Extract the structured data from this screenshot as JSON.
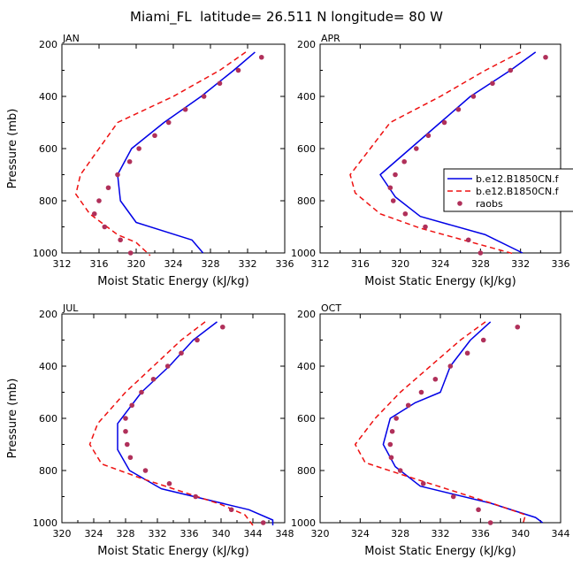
{
  "figure": {
    "title": "Miami_FL  latitude= 26.511 N longitude= 80 W"
  },
  "colors": {
    "model_a": "#0000e6",
    "model_b": "#ee1111",
    "raobs": "#b0305a"
  },
  "legend": {
    "entries": [
      "b.e12.B1850CN.f",
      "b.e12.B1850CN.f",
      "raobs"
    ]
  },
  "chart_data": [
    {
      "type": "line",
      "panel": "JAN",
      "xlabel": "Moist Static Energy (kJ/kg)",
      "ylabel": "Pressure (mb)",
      "xlim": [
        312,
        336
      ],
      "xticks": [
        312,
        316,
        320,
        324,
        328,
        332,
        336
      ],
      "ylim": [
        200,
        1000
      ],
      "yticks": [
        200,
        400,
        600,
        800,
        1000
      ],
      "series": [
        {
          "name": "b.e12.B1850CN.f",
          "style": "solid",
          "points": [
            [
              332.8,
              230
            ],
            [
              330.5,
              300
            ],
            [
              327,
              400
            ],
            [
              323,
              500
            ],
            [
              319.5,
              600
            ],
            [
              318,
              700
            ],
            [
              318.3,
              800
            ],
            [
              320,
              883
            ],
            [
              326,
              950
            ],
            [
              327.2,
              1000
            ]
          ]
        },
        {
          "name": "b.e12.B1850CN.f",
          "style": "dashed",
          "points": [
            [
              331.8,
              230
            ],
            [
              329,
              300
            ],
            [
              324,
              400
            ],
            [
              318,
              500
            ],
            [
              316,
              600
            ],
            [
              314,
              700
            ],
            [
              313.5,
              775
            ],
            [
              315,
              850
            ],
            [
              318,
              930
            ],
            [
              320,
              960
            ],
            [
              321.5,
              1010
            ]
          ]
        },
        {
          "name": "raobs",
          "style": "dots",
          "points": [
            [
              333.5,
              250
            ],
            [
              331,
              300
            ],
            [
              329,
              350
            ],
            [
              327.3,
              400
            ],
            [
              325.3,
              450
            ],
            [
              323.5,
              500
            ],
            [
              322,
              550
            ],
            [
              320.3,
              600
            ],
            [
              319.3,
              650
            ],
            [
              318,
              700
            ],
            [
              317,
              750
            ],
            [
              316,
              800
            ],
            [
              315.5,
              850
            ],
            [
              316.6,
              900
            ],
            [
              318.3,
              950
            ],
            [
              319.4,
              1000
            ]
          ]
        }
      ]
    },
    {
      "type": "line",
      "panel": "APR",
      "xlabel": "Moist Static Energy (kJ/kg)",
      "ylabel": "",
      "xlim": [
        312,
        336
      ],
      "xticks": [
        312,
        316,
        320,
        324,
        328,
        332,
        336
      ],
      "ylim": [
        200,
        1000
      ],
      "yticks": [
        200,
        400,
        600,
        800,
        1000
      ],
      "series": [
        {
          "name": "b.e12.B1850CN.f",
          "style": "solid",
          "points": [
            [
              333.5,
              230
            ],
            [
              331,
              300
            ],
            [
              327,
              400
            ],
            [
              324,
              500
            ],
            [
              321,
              600
            ],
            [
              318,
              700
            ],
            [
              319.5,
              785
            ],
            [
              322,
              860
            ],
            [
              328.5,
              930
            ],
            [
              332.2,
              1000
            ]
          ]
        },
        {
          "name": "b.e12.B1850CN.f",
          "style": "dashed",
          "points": [
            [
              332,
              230
            ],
            [
              328.5,
              300
            ],
            [
              324,
              400
            ],
            [
              319,
              500
            ],
            [
              317,
              600
            ],
            [
              315,
              700
            ],
            [
              315.5,
              770
            ],
            [
              318,
              850
            ],
            [
              322,
              905
            ],
            [
              327.2,
              960
            ],
            [
              331.5,
              1005
            ]
          ]
        },
        {
          "name": "raobs",
          "style": "dots",
          "points": [
            [
              334.5,
              250
            ],
            [
              331,
              300
            ],
            [
              329.2,
              350
            ],
            [
              327.3,
              400
            ],
            [
              325.8,
              450
            ],
            [
              324.4,
              500
            ],
            [
              322.8,
              550
            ],
            [
              321.6,
              600
            ],
            [
              320.4,
              650
            ],
            [
              319.5,
              700
            ],
            [
              319,
              750
            ],
            [
              319.3,
              800
            ],
            [
              320.5,
              850
            ],
            [
              322.5,
              900
            ],
            [
              326.8,
              950
            ],
            [
              328,
              1000
            ]
          ]
        }
      ]
    },
    {
      "type": "line",
      "panel": "JUL",
      "xlabel": "Moist Static Energy (kJ/kg)",
      "ylabel": "Pressure (mb)",
      "xlim": [
        320,
        348
      ],
      "xticks": [
        320,
        324,
        328,
        332,
        336,
        340,
        344,
        348
      ],
      "ylim": [
        200,
        1000
      ],
      "yticks": [
        200,
        400,
        600,
        800,
        1000
      ],
      "series": [
        {
          "name": "b.e12.B1850CN.f",
          "style": "solid",
          "points": [
            [
              339.5,
              230
            ],
            [
              336.5,
              300
            ],
            [
              333.5,
              400
            ],
            [
              330,
              500
            ],
            [
              327,
              620
            ],
            [
              327,
              720
            ],
            [
              328.5,
              800
            ],
            [
              332.5,
              870
            ],
            [
              343.5,
              950
            ],
            [
              346.5,
              990
            ],
            [
              346.5,
              1010
            ]
          ]
        },
        {
          "name": "b.e12.B1850CN.f",
          "style": "dashed",
          "points": [
            [
              338,
              230
            ],
            [
              335,
              300
            ],
            [
              331.5,
              400
            ],
            [
              328,
              500
            ],
            [
              324.5,
              620
            ],
            [
              323.5,
              700
            ],
            [
              325,
              775
            ],
            [
              330,
              830
            ],
            [
              335,
              880
            ],
            [
              340,
              930
            ],
            [
              343,
              970
            ],
            [
              344,
              1010
            ]
          ]
        },
        {
          "name": "raobs",
          "style": "dots",
          "points": [
            [
              340.2,
              250
            ],
            [
              337,
              300
            ],
            [
              335,
              350
            ],
            [
              333.3,
              400
            ],
            [
              331.5,
              450
            ],
            [
              330,
              500
            ],
            [
              328.8,
              550
            ],
            [
              328,
              600
            ],
            [
              328,
              650
            ],
            [
              328.2,
              700
            ],
            [
              328.6,
              750
            ],
            [
              330.5,
              800
            ],
            [
              333.5,
              850
            ],
            [
              336.8,
              900
            ],
            [
              341.3,
              950
            ],
            [
              345.3,
              1000
            ]
          ]
        }
      ]
    },
    {
      "type": "line",
      "panel": "OCT",
      "xlabel": "Moist Static Energy (kJ/kg)",
      "ylabel": "",
      "xlim": [
        320,
        344
      ],
      "xticks": [
        320,
        324,
        328,
        332,
        336,
        340,
        344
      ],
      "ylim": [
        200,
        1000
      ],
      "yticks": [
        200,
        400,
        600,
        800,
        1000
      ],
      "series": [
        {
          "name": "b.e12.B1850CN.f",
          "style": "solid",
          "points": [
            [
              337,
              230
            ],
            [
              335,
              300
            ],
            [
              333,
              400
            ],
            [
              332,
              500
            ],
            [
              329.5,
              540
            ],
            [
              327,
              600
            ],
            [
              326.3,
              700
            ],
            [
              327.5,
              785
            ],
            [
              330,
              860
            ],
            [
              337,
              925
            ],
            [
              341.5,
              980
            ],
            [
              342.2,
              1000
            ]
          ]
        },
        {
          "name": "b.e12.B1850CN.f",
          "style": "dashed",
          "points": [
            [
              336.5,
              230
            ],
            [
              334,
              300
            ],
            [
              331,
              400
            ],
            [
              328,
              500
            ],
            [
              325.5,
              600
            ],
            [
              323.5,
              700
            ],
            [
              324.5,
              770
            ],
            [
              328.5,
              820
            ],
            [
              333,
              875
            ],
            [
              337.5,
              930
            ],
            [
              340.5,
              970
            ],
            [
              340.2,
              1010
            ]
          ]
        },
        {
          "name": "raobs",
          "style": "dots",
          "points": [
            [
              339.7,
              250
            ],
            [
              336.3,
              300
            ],
            [
              334.7,
              350
            ],
            [
              333,
              400
            ],
            [
              331.5,
              450
            ],
            [
              330.1,
              500
            ],
            [
              328.8,
              550
            ],
            [
              327.6,
              600
            ],
            [
              327.2,
              650
            ],
            [
              327,
              700
            ],
            [
              327.1,
              750
            ],
            [
              328,
              800
            ],
            [
              330.3,
              850
            ],
            [
              333.3,
              900
            ],
            [
              335.8,
              950
            ],
            [
              337,
              1000
            ]
          ]
        }
      ]
    }
  ]
}
